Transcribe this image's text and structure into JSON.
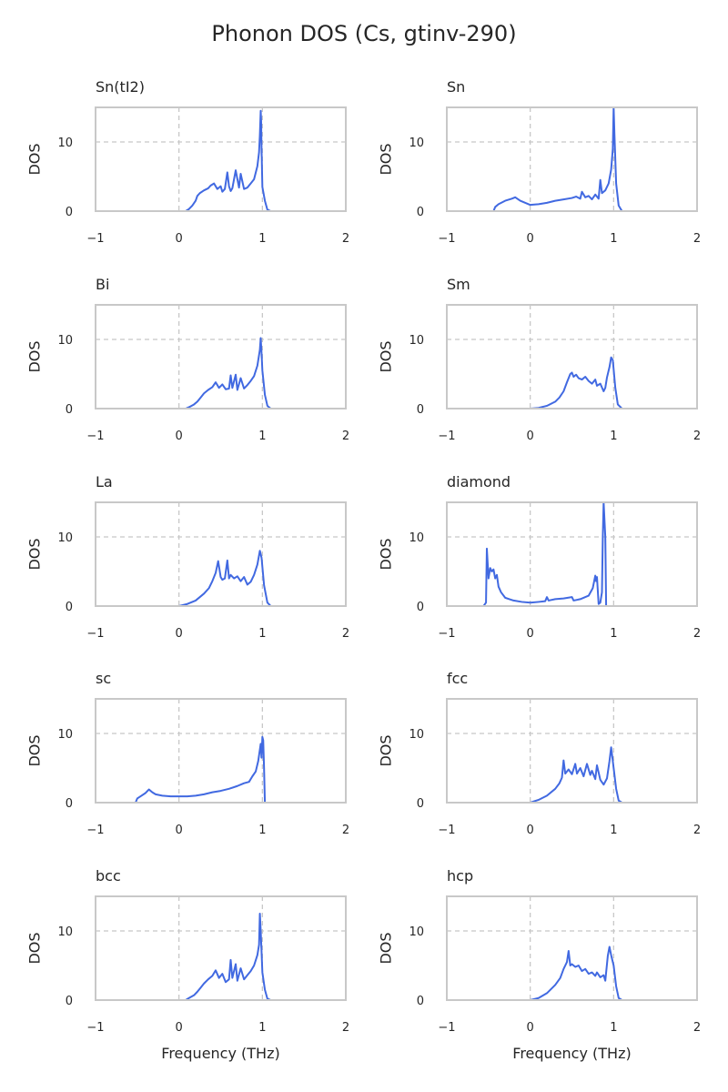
{
  "figure": {
    "title": "Phonon DOS (Cs, gtinv-290)",
    "line_color": "#4169e1",
    "grid_color": "#c8c8c8",
    "axis_color": "#c8c8c8",
    "text_color": "#262626"
  },
  "chart_data": [
    {
      "type": "line",
      "title": "Sn(tI2)",
      "xlabel": "",
      "ylabel": "DOS",
      "xlim": [
        -1,
        2
      ],
      "ylim": [
        0,
        15
      ],
      "xticks": [
        -1,
        0,
        1,
        2
      ],
      "xtick_labels": [
        "−1",
        "0",
        "1",
        "2"
      ],
      "yticks": [
        0,
        10
      ],
      "ytick_labels": [
        "0",
        "10"
      ],
      "reference_lines_x": [
        0,
        1
      ],
      "reference_lines_y": [
        10
      ],
      "series": [
        {
          "x": [
            -1.0,
            0.0,
            0.08,
            0.12,
            0.16,
            0.2,
            0.22,
            0.25,
            0.3,
            0.35,
            0.38,
            0.42,
            0.46,
            0.5,
            0.52,
            0.55,
            0.58,
            0.6,
            0.62,
            0.64,
            0.68,
            0.72,
            0.74,
            0.78,
            0.82,
            0.86,
            0.9,
            0.94,
            0.96,
            0.97,
            0.98,
            0.985,
            0.99,
            1.0,
            1.03,
            1.06,
            1.1,
            1.2,
            2.0
          ],
          "y": [
            0,
            0,
            0,
            0.3,
            0.8,
            1.5,
            2.2,
            2.6,
            3.0,
            3.3,
            3.7,
            4.0,
            3.2,
            3.6,
            2.8,
            3.2,
            5.6,
            3.6,
            2.9,
            3.3,
            5.9,
            3.4,
            5.4,
            3.2,
            3.4,
            4.0,
            4.6,
            6.5,
            8.5,
            11.0,
            14.5,
            13.0,
            9.0,
            3.5,
            1.5,
            0.2,
            0,
            0,
            0
          ]
        }
      ]
    },
    {
      "type": "line",
      "title": "Sn",
      "xlabel": "",
      "ylabel": "DOS",
      "xlim": [
        -1,
        2
      ],
      "ylim": [
        0,
        15
      ],
      "xticks": [
        -1,
        0,
        1,
        2
      ],
      "xtick_labels": [
        "−1",
        "0",
        "1",
        "2"
      ],
      "yticks": [
        0,
        10
      ],
      "ytick_labels": [
        "0",
        "10"
      ],
      "reference_lines_x": [
        0,
        1
      ],
      "reference_lines_y": [
        10
      ],
      "series": [
        {
          "x": [
            -1.0,
            -0.44,
            -0.42,
            -0.38,
            -0.3,
            -0.22,
            -0.18,
            -0.12,
            0.0,
            0.1,
            0.2,
            0.3,
            0.4,
            0.5,
            0.55,
            0.6,
            0.62,
            0.66,
            0.7,
            0.74,
            0.78,
            0.82,
            0.84,
            0.86,
            0.9,
            0.94,
            0.97,
            0.99,
            1.0,
            1.01,
            1.03,
            1.06,
            1.1,
            2.0
          ],
          "y": [
            0,
            0,
            0.6,
            1.0,
            1.5,
            1.8,
            2.0,
            1.5,
            0.9,
            1.0,
            1.2,
            1.5,
            1.7,
            1.9,
            2.1,
            1.8,
            2.8,
            2.0,
            2.2,
            1.7,
            2.4,
            1.8,
            4.5,
            2.6,
            3.0,
            4.0,
            6.0,
            9.0,
            15.0,
            11.0,
            4.0,
            0.8,
            0,
            0
          ]
        }
      ]
    },
    {
      "type": "line",
      "title": "Bi",
      "xlabel": "",
      "ylabel": "DOS",
      "xlim": [
        -1,
        2
      ],
      "ylim": [
        0,
        15
      ],
      "xticks": [
        -1,
        0,
        1,
        2
      ],
      "xtick_labels": [
        "−1",
        "0",
        "1",
        "2"
      ],
      "yticks": [
        0,
        10
      ],
      "ytick_labels": [
        "0",
        "10"
      ],
      "reference_lines_x": [
        0,
        1
      ],
      "reference_lines_y": [
        10
      ],
      "series": [
        {
          "x": [
            -1.0,
            0.0,
            0.08,
            0.12,
            0.18,
            0.22,
            0.26,
            0.3,
            0.35,
            0.4,
            0.44,
            0.48,
            0.52,
            0.56,
            0.6,
            0.62,
            0.64,
            0.68,
            0.7,
            0.74,
            0.78,
            0.82,
            0.86,
            0.9,
            0.94,
            0.97,
            0.98,
            0.99,
            1.0,
            1.03,
            1.06,
            1.1,
            2.0
          ],
          "y": [
            0,
            0,
            0,
            0.2,
            0.6,
            1.0,
            1.6,
            2.2,
            2.7,
            3.1,
            3.8,
            3.0,
            3.5,
            2.8,
            2.9,
            4.8,
            3.0,
            4.9,
            2.7,
            4.4,
            2.9,
            3.4,
            4.0,
            4.7,
            6.2,
            8.5,
            10.2,
            8.0,
            5.5,
            2.0,
            0.4,
            0,
            0
          ]
        }
      ]
    },
    {
      "type": "line",
      "title": "Sm",
      "xlabel": "",
      "ylabel": "DOS",
      "xlim": [
        -1,
        2
      ],
      "ylim": [
        0,
        15
      ],
      "xticks": [
        -1,
        0,
        1,
        2
      ],
      "xtick_labels": [
        "−1",
        "0",
        "1",
        "2"
      ],
      "yticks": [
        0,
        10
      ],
      "ytick_labels": [
        "0",
        "10"
      ],
      "reference_lines_x": [
        0,
        1
      ],
      "reference_lines_y": [
        10
      ],
      "series": [
        {
          "x": [
            -1.0,
            0.0,
            0.1,
            0.2,
            0.3,
            0.35,
            0.4,
            0.44,
            0.48,
            0.5,
            0.52,
            0.55,
            0.58,
            0.62,
            0.66,
            0.7,
            0.74,
            0.78,
            0.8,
            0.84,
            0.88,
            0.9,
            0.92,
            0.95,
            0.97,
            0.99,
            1.02,
            1.05,
            1.1,
            2.0
          ],
          "y": [
            0,
            0,
            0.1,
            0.4,
            1.0,
            1.6,
            2.5,
            3.8,
            5.0,
            5.2,
            4.6,
            4.9,
            4.4,
            4.2,
            4.6,
            4.0,
            3.6,
            4.2,
            3.3,
            3.6,
            2.5,
            3.0,
            4.5,
            6.0,
            7.4,
            7.0,
            3.0,
            0.6,
            0,
            0
          ]
        }
      ]
    },
    {
      "type": "line",
      "title": "La",
      "xlabel": "",
      "ylabel": "DOS",
      "xlim": [
        -1,
        2
      ],
      "ylim": [
        0,
        15
      ],
      "xticks": [
        -1,
        0,
        1,
        2
      ],
      "xtick_labels": [
        "−1",
        "0",
        "1",
        "2"
      ],
      "yticks": [
        0,
        10
      ],
      "ytick_labels": [
        "0",
        "10"
      ],
      "reference_lines_x": [
        0,
        1
      ],
      "reference_lines_y": [
        10
      ],
      "series": [
        {
          "x": [
            -1.0,
            0.0,
            0.1,
            0.2,
            0.3,
            0.36,
            0.4,
            0.44,
            0.47,
            0.5,
            0.52,
            0.55,
            0.58,
            0.6,
            0.62,
            0.66,
            0.7,
            0.74,
            0.78,
            0.82,
            0.86,
            0.9,
            0.94,
            0.97,
            0.99,
            1.02,
            1.06,
            1.1,
            2.0
          ],
          "y": [
            0,
            0,
            0.3,
            0.8,
            1.8,
            2.6,
            3.6,
            4.8,
            6.5,
            4.2,
            3.8,
            4.0,
            6.6,
            4.0,
            4.5,
            4.0,
            4.3,
            3.6,
            4.2,
            3.1,
            3.5,
            4.5,
            6.0,
            8.0,
            7.0,
            3.0,
            0.5,
            0,
            0
          ]
        }
      ]
    },
    {
      "type": "line",
      "title": "diamond",
      "xlabel": "",
      "ylabel": "DOS",
      "xlim": [
        -1,
        2
      ],
      "ylim": [
        0,
        15
      ],
      "xticks": [
        -1,
        0,
        1,
        2
      ],
      "xtick_labels": [
        "−1",
        "0",
        "1",
        "2"
      ],
      "yticks": [
        0,
        10
      ],
      "ytick_labels": [
        "0",
        "10"
      ],
      "reference_lines_x": [
        0,
        1
      ],
      "reference_lines_y": [
        10
      ],
      "series": [
        {
          "x": [
            -1.0,
            -0.66,
            -0.56,
            -0.53,
            -0.52,
            -0.5,
            -0.48,
            -0.46,
            -0.44,
            -0.42,
            -0.4,
            -0.38,
            -0.35,
            -0.3,
            -0.25,
            -0.2,
            -0.1,
            0.0,
            0.1,
            0.18,
            0.2,
            0.22,
            0.3,
            0.4,
            0.5,
            0.52,
            0.6,
            0.7,
            0.75,
            0.78,
            0.79,
            0.8,
            0.82,
            0.84,
            0.86,
            0.87,
            0.88,
            0.9,
            0.91,
            1.0,
            2.0
          ],
          "y": [
            0,
            0,
            0,
            0.5,
            8.3,
            4.0,
            5.5,
            5.0,
            5.3,
            4.0,
            4.5,
            2.8,
            2.0,
            1.2,
            1.0,
            0.8,
            0.6,
            0.5,
            0.6,
            0.7,
            1.3,
            0.8,
            1.0,
            1.1,
            1.3,
            0.8,
            1.0,
            1.5,
            2.6,
            4.4,
            3.6,
            4.2,
            0.3,
            0.5,
            2.0,
            10.0,
            15.0,
            10.0,
            0,
            0,
            0
          ]
        }
      ]
    },
    {
      "type": "line",
      "title": "sc",
      "xlabel": "",
      "ylabel": "DOS",
      "xlim": [
        -1,
        2
      ],
      "ylim": [
        0,
        15
      ],
      "xticks": [
        -1,
        0,
        1,
        2
      ],
      "xtick_labels": [
        "−1",
        "0",
        "1",
        "2"
      ],
      "yticks": [
        0,
        10
      ],
      "ytick_labels": [
        "0",
        "10"
      ],
      "reference_lines_x": [
        0,
        1
      ],
      "reference_lines_y": [
        10
      ],
      "series": [
        {
          "x": [
            -1.0,
            -0.52,
            -0.5,
            -0.45,
            -0.4,
            -0.36,
            -0.32,
            -0.28,
            -0.2,
            -0.1,
            0.0,
            0.1,
            0.2,
            0.3,
            0.4,
            0.5,
            0.6,
            0.7,
            0.78,
            0.84,
            0.88,
            0.92,
            0.95,
            0.98,
            0.99,
            1.0,
            1.01,
            1.02,
            1.03,
            1.05,
            2.0
          ],
          "y": [
            0,
            0,
            0.6,
            1.0,
            1.4,
            1.9,
            1.5,
            1.2,
            1.0,
            0.9,
            0.9,
            0.9,
            1.0,
            1.2,
            1.5,
            1.7,
            2.0,
            2.4,
            2.8,
            3.0,
            3.8,
            4.5,
            6.0,
            8.5,
            6.5,
            9.5,
            9.0,
            5.0,
            0,
            0,
            0
          ]
        }
      ]
    },
    {
      "type": "line",
      "title": "fcc",
      "xlabel": "",
      "ylabel": "DOS",
      "xlim": [
        -1,
        2
      ],
      "ylim": [
        0,
        15
      ],
      "xticks": [
        -1,
        0,
        1,
        2
      ],
      "xtick_labels": [
        "−1",
        "0",
        "1",
        "2"
      ],
      "yticks": [
        0,
        10
      ],
      "ytick_labels": [
        "0",
        "10"
      ],
      "reference_lines_x": [
        0,
        1
      ],
      "reference_lines_y": [
        10
      ],
      "series": [
        {
          "x": [
            -1.0,
            0.0,
            0.1,
            0.2,
            0.3,
            0.35,
            0.38,
            0.4,
            0.42,
            0.46,
            0.5,
            0.54,
            0.56,
            0.6,
            0.64,
            0.68,
            0.72,
            0.74,
            0.78,
            0.8,
            0.84,
            0.88,
            0.92,
            0.95,
            0.97,
            1.0,
            1.03,
            1.06,
            1.1,
            2.0
          ],
          "y": [
            0,
            0,
            0.4,
            1.0,
            2.0,
            2.8,
            3.6,
            6.1,
            4.2,
            4.8,
            4.1,
            5.6,
            4.2,
            5.0,
            3.8,
            5.6,
            4.0,
            4.6,
            3.4,
            5.4,
            3.3,
            2.6,
            3.5,
            6.0,
            8.0,
            5.0,
            2.0,
            0.3,
            0,
            0
          ]
        }
      ]
    },
    {
      "type": "line",
      "title": "bcc",
      "xlabel": "Frequency (THz)",
      "ylabel": "DOS",
      "xlim": [
        -1,
        2
      ],
      "ylim": [
        0,
        15
      ],
      "xticks": [
        -1,
        0,
        1,
        2
      ],
      "xtick_labels": [
        "−1",
        "0",
        "1",
        "2"
      ],
      "yticks": [
        0,
        10
      ],
      "ytick_labels": [
        "0",
        "10"
      ],
      "reference_lines_x": [
        0,
        1
      ],
      "reference_lines_y": [
        10
      ],
      "series": [
        {
          "x": [
            -1.0,
            0.0,
            0.08,
            0.12,
            0.18,
            0.22,
            0.26,
            0.3,
            0.35,
            0.4,
            0.44,
            0.48,
            0.52,
            0.56,
            0.6,
            0.62,
            0.64,
            0.68,
            0.7,
            0.74,
            0.78,
            0.82,
            0.86,
            0.9,
            0.94,
            0.96,
            0.97,
            0.98,
            0.99,
            1.0,
            1.03,
            1.06,
            1.1,
            2.0
          ],
          "y": [
            0,
            0,
            0,
            0.3,
            0.7,
            1.2,
            1.8,
            2.4,
            3.0,
            3.5,
            4.3,
            3.2,
            3.8,
            2.6,
            3.0,
            5.8,
            3.2,
            5.2,
            2.8,
            4.6,
            3.0,
            3.6,
            4.2,
            5.0,
            6.5,
            8.0,
            12.5,
            10.0,
            7.0,
            4.0,
            1.5,
            0.2,
            0,
            0
          ]
        }
      ]
    },
    {
      "type": "line",
      "title": "hcp",
      "xlabel": "Frequency (THz)",
      "ylabel": "DOS",
      "xlim": [
        -1,
        2
      ],
      "ylim": [
        0,
        15
      ],
      "xticks": [
        -1,
        0,
        1,
        2
      ],
      "xtick_labels": [
        "−1",
        "0",
        "1",
        "2"
      ],
      "yticks": [
        0,
        10
      ],
      "ytick_labels": [
        "0",
        "10"
      ],
      "reference_lines_x": [
        0,
        1
      ],
      "reference_lines_y": [
        10
      ],
      "series": [
        {
          "x": [
            -1.0,
            0.0,
            0.1,
            0.2,
            0.3,
            0.36,
            0.4,
            0.44,
            0.46,
            0.48,
            0.5,
            0.54,
            0.58,
            0.62,
            0.66,
            0.7,
            0.74,
            0.78,
            0.8,
            0.84,
            0.88,
            0.9,
            0.93,
            0.95,
            0.97,
            1.0,
            1.03,
            1.06,
            1.1,
            2.0
          ],
          "y": [
            0,
            0,
            0.3,
            1.0,
            2.2,
            3.2,
            4.5,
            5.5,
            7.1,
            5.0,
            5.2,
            4.8,
            5.0,
            4.2,
            4.5,
            3.8,
            4.0,
            3.5,
            4.0,
            3.3,
            3.6,
            2.8,
            6.4,
            7.7,
            6.5,
            5.0,
            2.0,
            0.3,
            0,
            0
          ]
        }
      ]
    }
  ]
}
